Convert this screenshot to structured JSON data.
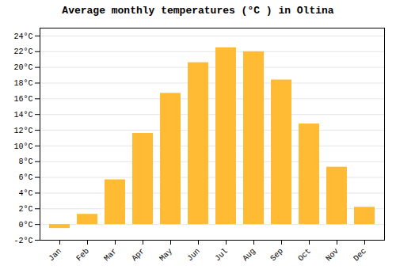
{
  "chart_data": {
    "type": "bar",
    "title": "Average monthly temperatures (°C ) in Oltina",
    "categories": [
      "Jan",
      "Feb",
      "Mar",
      "Apr",
      "May",
      "Jun",
      "Jul",
      "Aug",
      "Sep",
      "Oct",
      "Nov",
      "Dec"
    ],
    "values": [
      -0.5,
      1.3,
      5.7,
      11.6,
      16.7,
      20.6,
      22.5,
      22.0,
      18.4,
      12.8,
      7.3,
      2.2
    ],
    "color": "#FFBB33",
    "ylim": [
      -2,
      25
    ],
    "yticks": [
      {
        "value": -2,
        "label": "-2°C"
      },
      {
        "value": 0,
        "label": "0°C"
      },
      {
        "value": 2,
        "label": "2°C"
      },
      {
        "value": 4,
        "label": "4°C"
      },
      {
        "value": 6,
        "label": "6°C"
      },
      {
        "value": 8,
        "label": "8°C"
      },
      {
        "value": 10,
        "label": "10°C"
      },
      {
        "value": 12,
        "label": "12°C"
      },
      {
        "value": 14,
        "label": "14°C"
      },
      {
        "value": 16,
        "label": "16°C"
      },
      {
        "value": 18,
        "label": "18°C"
      },
      {
        "value": 20,
        "label": "20°C"
      },
      {
        "value": 22,
        "label": "22°C"
      },
      {
        "value": 24,
        "label": "24°C"
      }
    ],
    "grid": true
  }
}
